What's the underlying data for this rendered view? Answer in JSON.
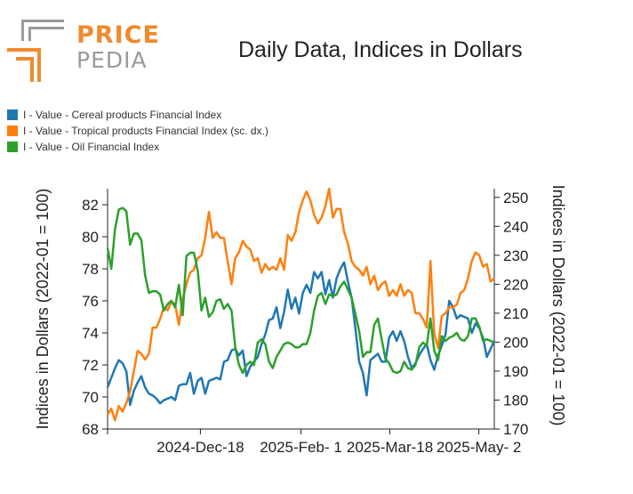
{
  "logo": {
    "word1": "PRICE",
    "word2": "PEDIA"
  },
  "colors": {
    "cereal": "#1f77b4",
    "tropical": "#ff7f0e",
    "oil": "#2ca02c",
    "logo_orange": "#f08a2c",
    "logo_grey": "#9a9a9a"
  },
  "chart_data": {
    "type": "line",
    "title": "Daily Data, Indices in Dollars",
    "ylabel": "Indices in Dollars (2022-01 = 100)",
    "y2label": "Indices in Dollars (2022-01 = 100)",
    "ylim": [
      68,
      83
    ],
    "y2lim": [
      170,
      253
    ],
    "yticks": [
      "68",
      "70",
      "72",
      "74",
      "76",
      "78",
      "80",
      "82"
    ],
    "y2ticks": [
      "170",
      "180",
      "190",
      "200",
      "210",
      "220",
      "230",
      "240",
      "250"
    ],
    "xlim": [
      0,
      100
    ],
    "xticks": [
      {
        "label": "2024-Dec-18",
        "x": 24
      },
      {
        "label": "2025-Feb- 1",
        "x": 50
      },
      {
        "label": "2025-Mar-18",
        "x": 73
      },
      {
        "label": "2025-May- 2",
        "x": 96
      }
    ],
    "legend_position": "top-left",
    "series": [
      {
        "name": "I - Value - Cereal products Financial Index",
        "axis": "left",
        "points": [
          [
            0,
            70.6
          ],
          [
            1,
            71.2
          ],
          [
            2,
            71.8
          ],
          [
            3,
            72.3
          ],
          [
            4,
            72.1
          ],
          [
            5,
            71.6
          ],
          [
            6,
            69.5
          ],
          [
            7,
            70.4
          ],
          [
            8,
            70.9
          ],
          [
            9,
            71.3
          ],
          [
            10,
            70.6
          ],
          [
            11,
            70.2
          ],
          [
            12,
            70.1
          ],
          [
            13,
            69.9
          ],
          [
            14,
            69.6
          ],
          [
            15,
            69.8
          ],
          [
            16,
            69.9
          ],
          [
            17,
            70.0
          ],
          [
            18,
            69.8
          ],
          [
            19,
            70.7
          ],
          [
            20,
            70.8
          ],
          [
            21,
            70.8
          ],
          [
            22,
            71.5
          ],
          [
            23,
            70.2
          ],
          [
            24,
            71.0
          ],
          [
            25,
            71.2
          ],
          [
            26,
            70.2
          ],
          [
            27,
            71.0
          ],
          [
            28,
            71.1
          ],
          [
            29,
            71.2
          ],
          [
            30,
            71.1
          ],
          [
            31,
            72.2
          ],
          [
            32,
            72.3
          ],
          [
            33,
            72.9
          ],
          [
            34,
            73.0
          ],
          [
            35,
            72.6
          ],
          [
            36,
            72.9
          ],
          [
            37,
            71.3
          ],
          [
            38,
            71.9
          ],
          [
            39,
            72.2
          ],
          [
            40,
            72.5
          ],
          [
            41,
            73.3
          ],
          [
            42,
            73.9
          ],
          [
            43,
            74.8
          ],
          [
            44,
            74.9
          ],
          [
            45,
            75.6
          ],
          [
            46,
            74.3
          ],
          [
            47,
            75.3
          ],
          [
            48,
            76.7
          ],
          [
            49,
            75.5
          ],
          [
            50,
            76.2
          ],
          [
            51,
            75.2
          ],
          [
            52,
            76.5
          ],
          [
            53,
            77.0
          ],
          [
            54,
            76.5
          ],
          [
            55,
            77.8
          ],
          [
            56,
            77.4
          ],
          [
            57,
            77.8
          ],
          [
            58,
            76.4
          ],
          [
            59,
            77.3
          ],
          [
            60,
            76.2
          ],
          [
            61,
            77.4
          ],
          [
            62,
            78.0
          ],
          [
            63,
            78.4
          ],
          [
            64,
            77.2
          ],
          [
            65,
            76.2
          ],
          [
            66,
            74.3
          ],
          [
            67,
            72.2
          ],
          [
            68,
            71.5
          ],
          [
            69,
            70.1
          ],
          [
            70,
            72.3
          ],
          [
            71,
            72.5
          ],
          [
            72,
            72.7
          ],
          [
            73,
            72.2
          ],
          [
            74,
            72.2
          ],
          [
            75,
            73.7
          ],
          [
            76,
            74.1
          ],
          [
            77,
            73.5
          ],
          [
            78,
            74.1
          ],
          [
            79,
            73.5
          ],
          [
            80,
            72.5
          ],
          [
            81,
            71.8
          ],
          [
            82,
            72.1
          ],
          [
            83,
            72.6
          ],
          [
            84,
            73.0
          ],
          [
            85,
            73.3
          ],
          [
            86,
            72.3
          ],
          [
            87,
            71.7
          ],
          [
            88,
            72.6
          ],
          [
            89,
            73.2
          ],
          [
            90,
            73.9
          ],
          [
            91,
            76.0
          ],
          [
            92,
            75.6
          ],
          [
            93,
            74.9
          ],
          [
            94,
            75.1
          ],
          [
            95,
            75.0
          ],
          [
            96,
            74.9
          ],
          [
            97,
            74.0
          ],
          [
            98,
            74.6
          ],
          [
            99,
            74.3
          ],
          [
            100,
            73.7
          ],
          [
            101,
            72.5
          ],
          [
            102,
            73.0
          ],
          [
            103,
            73.5
          ]
        ]
      },
      {
        "name": "I - Value - Tropical products Financial Index (sc. dx.)",
        "axis": "right",
        "points": [
          [
            0,
            175
          ],
          [
            1,
            177
          ],
          [
            2,
            173
          ],
          [
            3,
            178
          ],
          [
            4,
            176
          ],
          [
            5,
            179
          ],
          [
            6,
            183
          ],
          [
            7,
            190
          ],
          [
            8,
            197
          ],
          [
            9,
            196
          ],
          [
            10,
            194
          ],
          [
            11,
            196
          ],
          [
            12,
            205
          ],
          [
            13,
            205
          ],
          [
            14,
            208
          ],
          [
            15,
            212
          ],
          [
            16,
            211
          ],
          [
            17,
            214
          ],
          [
            18,
            213
          ],
          [
            19,
            206
          ],
          [
            20,
            215
          ],
          [
            21,
            220
          ],
          [
            22,
            224
          ],
          [
            23,
            225
          ],
          [
            24,
            229
          ],
          [
            25,
            230
          ],
          [
            26,
            236
          ],
          [
            27,
            245
          ],
          [
            28,
            236
          ],
          [
            29,
            238
          ],
          [
            30,
            236
          ],
          [
            31,
            236
          ],
          [
            32,
            228
          ],
          [
            33,
            220
          ],
          [
            34,
            229
          ],
          [
            35,
            231
          ],
          [
            36,
            235
          ],
          [
            37,
            233
          ],
          [
            38,
            232
          ],
          [
            39,
            228
          ],
          [
            40,
            229
          ],
          [
            41,
            224
          ],
          [
            42,
            227
          ],
          [
            43,
            225
          ],
          [
            44,
            226
          ],
          [
            45,
            225
          ],
          [
            46,
            229
          ],
          [
            47,
            225
          ],
          [
            48,
            237
          ],
          [
            49,
            235
          ],
          [
            50,
            238
          ],
          [
            51,
            245
          ],
          [
            52,
            249
          ],
          [
            53,
            252
          ],
          [
            54,
            249
          ],
          [
            55,
            244
          ],
          [
            56,
            241
          ],
          [
            57,
            243
          ],
          [
            58,
            247
          ],
          [
            59,
            253
          ],
          [
            60,
            243
          ],
          [
            61,
            246
          ],
          [
            62,
            246
          ],
          [
            63,
            238
          ],
          [
            64,
            234
          ],
          [
            65,
            228
          ],
          [
            66,
            226
          ],
          [
            67,
            225
          ],
          [
            68,
            223
          ],
          [
            69,
            226
          ],
          [
            70,
            220
          ],
          [
            71,
            223
          ],
          [
            72,
            218
          ],
          [
            73,
            220
          ],
          [
            74,
            221
          ],
          [
            75,
            216
          ],
          [
            76,
            218
          ],
          [
            77,
            216
          ],
          [
            78,
            220
          ],
          [
            79,
            216
          ],
          [
            80,
            218
          ],
          [
            81,
            217
          ],
          [
            82,
            210
          ],
          [
            83,
            210
          ],
          [
            84,
            208
          ],
          [
            85,
            205
          ],
          [
            86,
            228
          ],
          [
            87,
            203
          ],
          [
            88,
            198
          ],
          [
            89,
            209
          ],
          [
            90,
            210
          ],
          [
            91,
            212
          ],
          [
            92,
            212
          ],
          [
            93,
            213
          ],
          [
            94,
            217
          ],
          [
            95,
            218
          ],
          [
            96,
            222
          ],
          [
            97,
            228
          ],
          [
            98,
            231
          ],
          [
            99,
            230
          ],
          [
            100,
            226
          ],
          [
            101,
            227
          ],
          [
            102,
            221
          ],
          [
            103,
            222
          ]
        ]
      },
      {
        "name": "I - Value - Oil Financial Index",
        "axis": "left",
        "points": [
          [
            0,
            79.3
          ],
          [
            1,
            78.0
          ],
          [
            2,
            80.5
          ],
          [
            3,
            81.7
          ],
          [
            4,
            81.8
          ],
          [
            5,
            81.6
          ],
          [
            6,
            79.5
          ],
          [
            7,
            80.2
          ],
          [
            8,
            80.2
          ],
          [
            9,
            79.8
          ],
          [
            10,
            77.6
          ],
          [
            11,
            76.5
          ],
          [
            12,
            76.6
          ],
          [
            13,
            76.6
          ],
          [
            14,
            76.4
          ],
          [
            15,
            75.4
          ],
          [
            16,
            75.8
          ],
          [
            17,
            76.0
          ],
          [
            18,
            75.6
          ],
          [
            19,
            77.0
          ],
          [
            20,
            75.1
          ],
          [
            21,
            78.8
          ],
          [
            22,
            79.0
          ],
          [
            23,
            79.0
          ],
          [
            24,
            77.9
          ],
          [
            25,
            75.4
          ],
          [
            26,
            76.2
          ],
          [
            27,
            75.0
          ],
          [
            28,
            75.3
          ],
          [
            29,
            76.0
          ],
          [
            30,
            76.1
          ],
          [
            31,
            75.5
          ],
          [
            32,
            75.8
          ],
          [
            33,
            75.4
          ],
          [
            34,
            73.1
          ],
          [
            35,
            72.0
          ],
          [
            36,
            71.5
          ],
          [
            37,
            72.0
          ],
          [
            38,
            72.2
          ],
          [
            39,
            72.0
          ],
          [
            40,
            73.4
          ],
          [
            41,
            73.6
          ],
          [
            42,
            73.3
          ],
          [
            43,
            72.2
          ],
          [
            44,
            71.8
          ],
          [
            45,
            72.5
          ],
          [
            46,
            72.9
          ],
          [
            47,
            73.3
          ],
          [
            48,
            73.4
          ],
          [
            49,
            73.3
          ],
          [
            50,
            73.1
          ],
          [
            51,
            73.1
          ],
          [
            52,
            73.3
          ],
          [
            53,
            73.3
          ],
          [
            54,
            74.0
          ],
          [
            55,
            75.4
          ],
          [
            56,
            76.3
          ],
          [
            57,
            76.5
          ],
          [
            58,
            75.8
          ],
          [
            59,
            76.4
          ],
          [
            60,
            76.3
          ],
          [
            61,
            76.4
          ],
          [
            62,
            76.9
          ],
          [
            63,
            77.2
          ],
          [
            64,
            76.7
          ],
          [
            65,
            76.2
          ],
          [
            66,
            75.2
          ],
          [
            67,
            74.1
          ],
          [
            68,
            72.5
          ],
          [
            69,
            72.8
          ],
          [
            70,
            72.8
          ],
          [
            71,
            74.5
          ],
          [
            72,
            74.9
          ],
          [
            73,
            73.6
          ],
          [
            74,
            72.4
          ],
          [
            75,
            72.1
          ],
          [
            76,
            71.6
          ],
          [
            77,
            71.5
          ],
          [
            78,
            71.6
          ],
          [
            79,
            72.2
          ],
          [
            80,
            71.8
          ],
          [
            81,
            71.7
          ],
          [
            82,
            72.0
          ],
          [
            83,
            73.1
          ],
          [
            84,
            73.4
          ],
          [
            85,
            73.2
          ],
          [
            86,
            74.9
          ],
          [
            87,
            72.9
          ],
          [
            88,
            72.3
          ],
          [
            89,
            73.8
          ],
          [
            90,
            73.5
          ],
          [
            91,
            73.7
          ],
          [
            92,
            73.8
          ],
          [
            93,
            74.0
          ],
          [
            94,
            73.6
          ],
          [
            95,
            73.5
          ],
          [
            96,
            73.8
          ],
          [
            97,
            74.9
          ],
          [
            98,
            74.9
          ],
          [
            99,
            74.4
          ],
          [
            100,
            73.5
          ],
          [
            101,
            73.6
          ],
          [
            102,
            73.5
          ],
          [
            103,
            73.4
          ]
        ]
      }
    ]
  }
}
